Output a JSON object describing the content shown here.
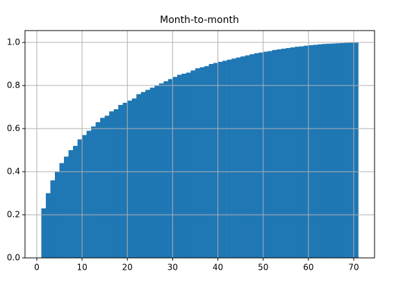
{
  "chart_data": {
    "type": "histogram",
    "title": "Month-to-month",
    "cumulative": true,
    "density": true,
    "bins": [
      1,
      2,
      3,
      4,
      5,
      6,
      7,
      8,
      9,
      10,
      11,
      12,
      13,
      14,
      15,
      16,
      17,
      18,
      19,
      20,
      21,
      22,
      23,
      24,
      25,
      26,
      27,
      28,
      29,
      30,
      31,
      32,
      33,
      34,
      35,
      36,
      37,
      38,
      39,
      40,
      41,
      42,
      43,
      44,
      45,
      46,
      47,
      48,
      49,
      50,
      51,
      52,
      53,
      54,
      55,
      56,
      57,
      58,
      59,
      60,
      61,
      62,
      63,
      64,
      65,
      66,
      67,
      68,
      69,
      70,
      71
    ],
    "values": [
      0.23,
      0.3,
      0.36,
      0.4,
      0.44,
      0.47,
      0.5,
      0.52,
      0.55,
      0.57,
      0.59,
      0.61,
      0.63,
      0.65,
      0.66,
      0.68,
      0.69,
      0.71,
      0.72,
      0.73,
      0.74,
      0.76,
      0.77,
      0.78,
      0.79,
      0.8,
      0.81,
      0.82,
      0.83,
      0.84,
      0.85,
      0.855,
      0.86,
      0.87,
      0.88,
      0.885,
      0.89,
      0.9,
      0.905,
      0.91,
      0.915,
      0.92,
      0.925,
      0.93,
      0.935,
      0.94,
      0.945,
      0.95,
      0.953,
      0.957,
      0.96,
      0.965,
      0.968,
      0.971,
      0.974,
      0.977,
      0.98,
      0.982,
      0.985,
      0.987,
      0.989,
      0.991,
      0.993,
      0.994,
      0.995,
      0.996,
      0.997,
      0.998,
      0.999,
      1.0
    ],
    "color": "#1f77b4",
    "xlim": [
      -2.6,
      74.6
    ],
    "xticks": [
      0,
      10,
      20,
      30,
      40,
      50,
      60,
      70
    ],
    "ylim": [
      0,
      1.055
    ],
    "yticks": [
      {
        "value": 0,
        "label": "0.0"
      },
      {
        "value": 0.2,
        "label": "0.2"
      },
      {
        "value": 0.4,
        "label": "0.4"
      },
      {
        "value": 0.6,
        "label": "0.6"
      },
      {
        "value": 0.8,
        "label": "0.8"
      },
      {
        "value": 1,
        "label": "1.0"
      }
    ],
    "grid": true
  }
}
